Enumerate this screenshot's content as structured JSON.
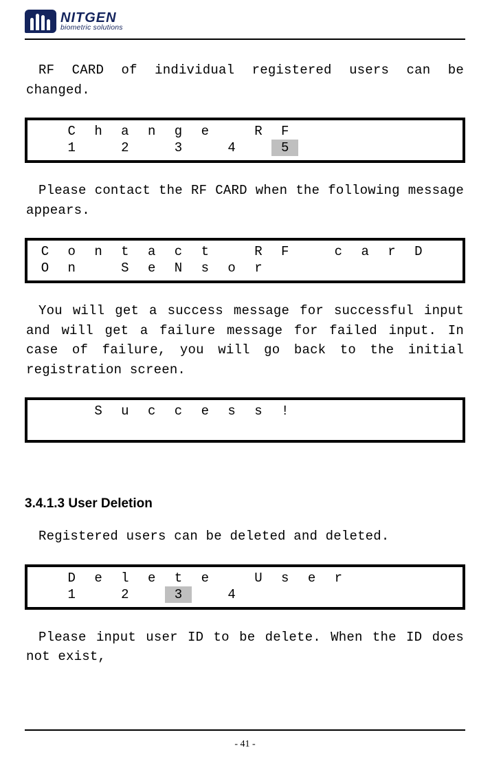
{
  "logo": {
    "main": "NITGEN",
    "sub": "biometric solutions"
  },
  "para1": "RF CARD of individual registered users can be changed.",
  "lcd1": {
    "cols": 16,
    "row1": [
      " ",
      "C",
      "h",
      "a",
      "n",
      "g",
      "e",
      " ",
      "R",
      "F",
      " ",
      " ",
      " ",
      " ",
      " ",
      " "
    ],
    "row2": [
      " ",
      "1",
      " ",
      "2",
      " ",
      "3",
      " ",
      "4",
      " ",
      "5",
      " ",
      " ",
      " ",
      " ",
      " ",
      " "
    ],
    "highlight_row": 2,
    "highlight_col": 9
  },
  "para2": "Please contact the RF CARD when the following message appears.",
  "lcd2": {
    "cols": 16,
    "row1": [
      "C",
      "o",
      "n",
      "t",
      "a",
      "c",
      "t",
      " ",
      "R",
      "F",
      " ",
      "c",
      "a",
      "r",
      "D",
      " "
    ],
    "row2": [
      "O",
      "n",
      " ",
      "S",
      "e",
      "N",
      "s",
      "o",
      "r",
      " ",
      " ",
      " ",
      " ",
      " ",
      " ",
      " "
    ]
  },
  "para3": "You will get a success message for successful input and will get a failure message for failed input. In case of failure, you will go back to the initial registration screen.",
  "lcd3": {
    "cols": 16,
    "row1": [
      " ",
      " ",
      "S",
      "u",
      "c",
      "c",
      "e",
      "s",
      "s",
      "!",
      " ",
      " ",
      " ",
      " ",
      " ",
      " "
    ],
    "row2": [
      " ",
      " ",
      " ",
      " ",
      " ",
      " ",
      " ",
      " ",
      " ",
      " ",
      " ",
      " ",
      " ",
      " ",
      " ",
      " "
    ]
  },
  "heading": "3.4.1.3 User Deletion",
  "para4": "Registered users can be deleted and deleted.",
  "lcd4": {
    "cols": 16,
    "row1": [
      " ",
      "D",
      "e",
      "l",
      "e",
      "t",
      "e",
      " ",
      "U",
      "s",
      "e",
      "r",
      " ",
      " ",
      " ",
      " "
    ],
    "row2": [
      " ",
      "1",
      " ",
      "2",
      " ",
      "3",
      " ",
      "4",
      " ",
      " ",
      " ",
      " ",
      " ",
      " ",
      " ",
      " "
    ],
    "highlight_row": 2,
    "highlight_col": 5
  },
  "para5": "Please input user ID to be delete. When the ID does not exist,",
  "page_number": "- 41 -",
  "colors": {
    "logo": "#14245d",
    "highlight": "#bfbfbf",
    "text": "#000000",
    "bg": "#ffffff"
  }
}
